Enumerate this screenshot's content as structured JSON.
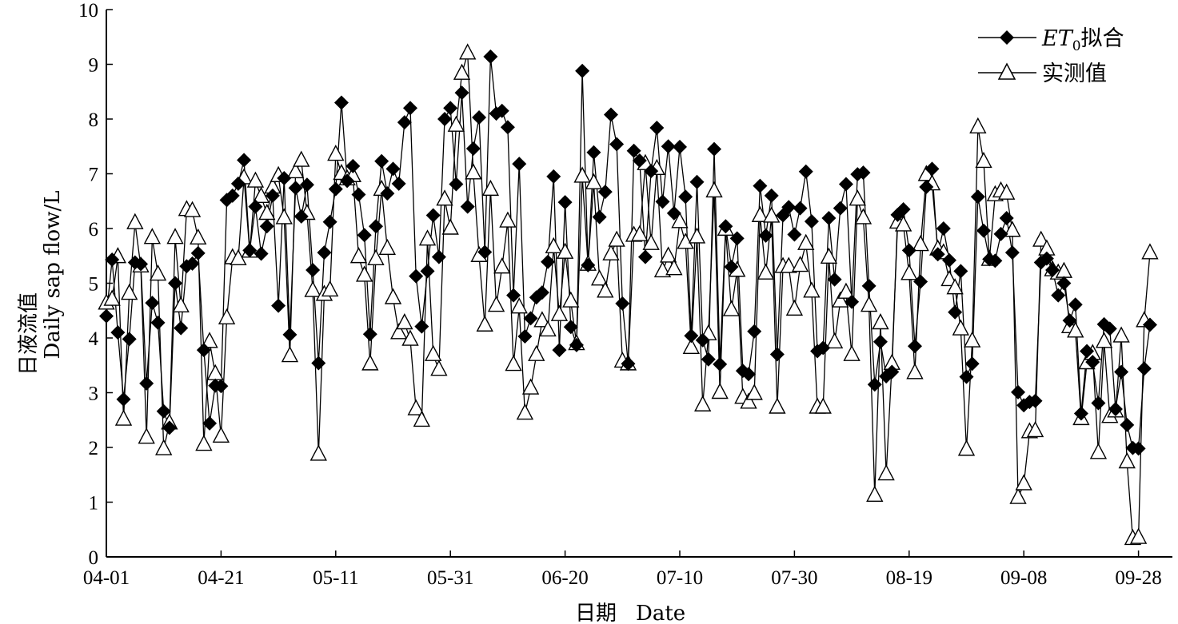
{
  "chart_data": {
    "type": "line",
    "ylabel_zh": "日液流值",
    "ylabel_en": "Daily sap flow/L",
    "xlabel_zh": "日期",
    "xlabel_en": "Date",
    "ylim": [
      0,
      10
    ],
    "yticks": [
      "0",
      "1",
      "2",
      "3",
      "4",
      "5",
      "6",
      "7",
      "8",
      "9",
      "10"
    ],
    "x_tick_labels": [
      "04-01",
      "04-21",
      "05-11",
      "05-31",
      "06-20",
      "07-10",
      "07-30",
      "08-19",
      "09-08",
      "09-28"
    ],
    "legend_position": "top-right",
    "series": [
      {
        "name": "ET0拟合",
        "legend_main": "ET",
        "legend_sub": "0",
        "legend_rest": "拟合",
        "marker": "filled-diamond",
        "values": [
          4.4,
          5.43,
          4.1,
          2.88,
          3.98,
          5.38,
          5.35,
          3.17,
          4.64,
          4.28,
          2.66,
          2.36,
          5.0,
          4.18,
          5.31,
          5.36,
          5.55,
          3.78,
          2.44,
          3.13,
          3.12,
          6.52,
          6.6,
          6.82,
          7.25,
          5.6,
          6.4,
          5.54,
          6.04,
          6.6,
          4.59,
          6.92,
          4.06,
          6.74,
          6.22,
          6.8,
          5.24,
          3.54,
          5.56,
          6.12,
          6.72,
          8.3,
          6.87,
          7.14,
          6.62,
          5.88,
          4.07,
          6.04,
          7.23,
          6.64,
          7.09,
          6.82,
          7.94,
          8.2,
          5.13,
          4.21,
          5.22,
          6.24,
          5.48,
          8.0,
          8.2,
          6.81,
          8.48,
          6.4,
          7.46,
          8.03,
          5.57,
          9.14,
          8.1,
          8.15,
          7.85,
          4.78,
          7.18,
          4.03,
          4.36,
          4.74,
          4.83,
          5.39,
          6.95,
          3.78,
          6.48,
          4.2,
          3.87,
          8.88,
          5.33,
          7.39,
          6.21,
          6.67,
          8.08,
          7.54,
          4.63,
          3.53,
          7.42,
          7.24,
          5.48,
          7.05,
          7.84,
          6.49,
          7.5,
          6.28,
          7.49,
          6.58,
          4.04,
          6.85,
          3.96,
          3.61,
          7.45,
          3.52,
          6.04,
          5.3,
          5.82,
          3.4,
          3.34,
          4.12,
          6.78,
          5.87,
          6.6,
          3.7,
          6.24,
          6.39,
          5.89,
          6.37,
          7.04,
          6.13,
          3.76,
          3.82,
          6.19,
          5.07,
          6.37,
          6.81,
          4.66,
          6.99,
          7.02,
          4.95,
          3.15,
          3.93,
          3.3,
          3.38,
          6.25,
          6.35,
          5.6,
          3.85,
          5.03,
          6.76,
          7.09,
          5.53,
          6.0,
          5.42,
          4.47,
          5.22,
          3.29,
          3.53,
          6.58,
          5.96,
          5.44,
          5.41,
          5.9,
          6.19,
          5.56,
          3.01,
          2.77,
          2.83,
          2.85,
          5.38,
          5.45,
          5.24,
          4.78,
          5.0,
          4.32,
          4.61,
          2.62,
          3.76,
          3.56,
          2.81,
          4.25,
          4.17,
          2.7,
          3.38,
          2.41,
          1.99,
          1.98,
          3.44,
          4.24
        ]
      },
      {
        "name": "实测值",
        "marker": "hollow-triangle",
        "values": [
          4.63,
          4.7,
          5.48,
          2.51,
          4.81,
          6.1,
          5.31,
          2.18,
          5.83,
          5.16,
          1.97,
          2.44,
          5.83,
          4.58,
          6.34,
          6.32,
          5.82,
          2.05,
          3.93,
          3.34,
          2.2,
          4.36,
          5.46,
          5.44,
          6.92,
          5.58,
          6.86,
          6.58,
          6.27,
          6.75,
          6.96,
          6.19,
          3.67,
          7.03,
          7.24,
          6.27,
          4.86,
          1.87,
          4.79,
          4.87,
          7.35,
          7.0,
          6.9,
          6.96,
          5.48,
          5.14,
          3.52,
          5.44,
          6.71,
          5.63,
          4.73,
          4.09,
          4.27,
          3.97,
          2.7,
          2.49,
          5.8,
          3.69,
          3.42,
          6.53,
          6.0,
          7.88,
          8.83,
          9.2,
          7.01,
          5.5,
          4.23,
          6.71,
          4.59,
          5.29,
          6.13,
          3.51,
          4.56,
          2.62,
          3.08,
          3.69,
          4.31,
          4.14,
          5.66,
          4.42,
          5.56,
          4.67,
          3.89,
          6.95,
          5.34,
          6.83,
          5.07,
          4.85,
          5.53,
          5.78,
          3.57,
          3.52,
          5.87,
          5.88,
          7.18,
          5.72,
          7.09,
          5.22,
          5.49,
          5.26,
          6.12,
          5.74,
          3.82,
          5.84,
          2.77,
          4.07,
          6.68,
          3.0,
          5.98,
          4.51,
          5.23,
          2.91,
          2.82,
          2.98,
          6.23,
          5.18,
          6.22,
          2.73,
          5.3,
          5.3,
          4.52,
          5.32,
          5.72,
          4.85,
          2.73,
          2.73,
          5.47,
          3.92,
          4.67,
          4.83,
          3.69,
          6.53,
          6.19,
          4.59,
          1.12,
          4.27,
          1.51,
          3.53,
          6.11,
          6.06,
          5.17,
          3.36,
          5.7,
          6.98,
          6.81,
          5.62,
          5.55,
          5.06,
          4.91,
          4.16,
          1.96,
          3.94,
          7.85,
          7.22,
          5.43,
          6.61,
          6.68,
          6.64,
          5.96,
          1.08,
          1.33,
          2.28,
          2.3,
          5.78,
          5.62,
          5.24,
          5.18,
          5.21,
          4.2,
          4.12,
          2.52,
          3.54,
          3.71,
          1.9,
          3.93,
          2.56,
          2.66,
          4.03,
          1.73,
          0.33,
          0.35,
          4.31,
          5.55
        ]
      }
    ]
  }
}
